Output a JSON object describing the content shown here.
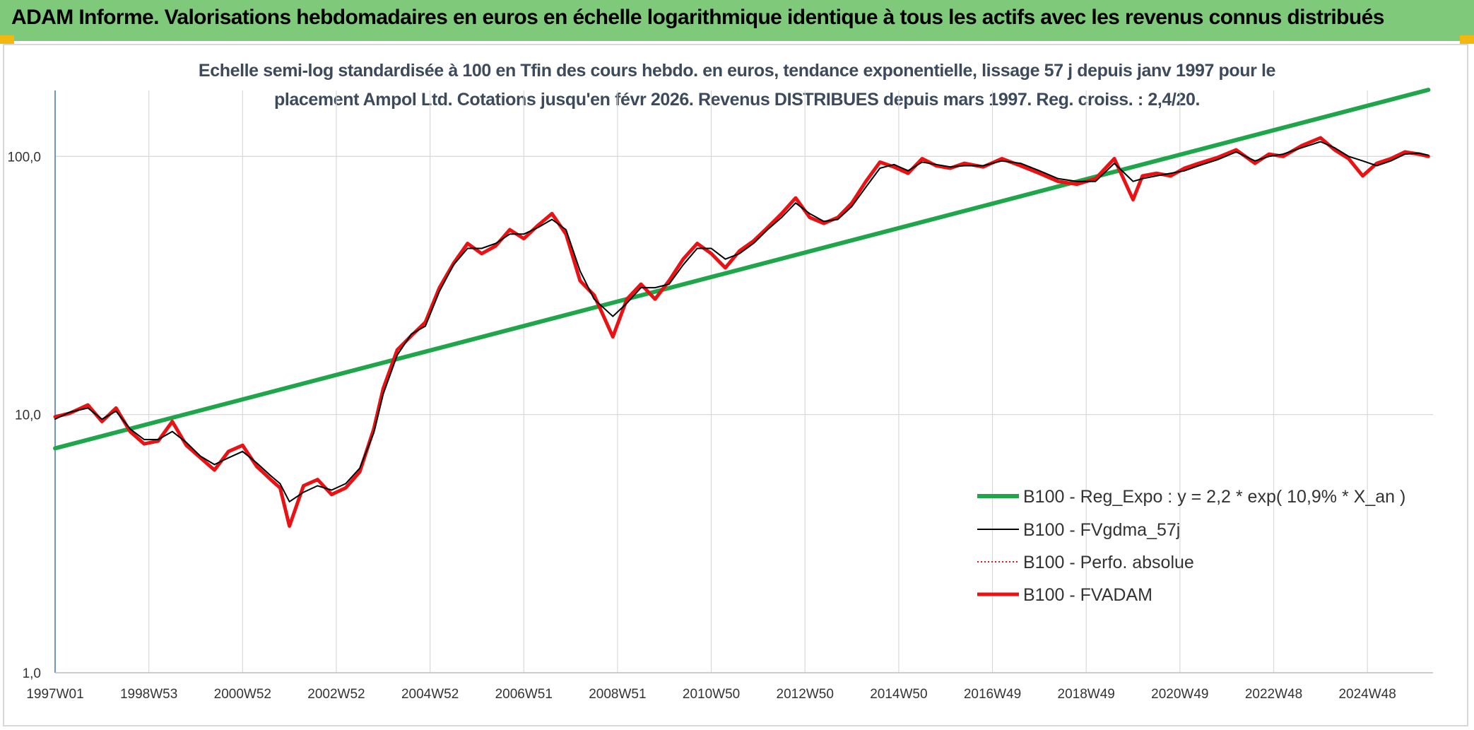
{
  "header": {
    "title": "ADAM Informe. Valorisations hebdomadaires en euros en échelle logarithmique identique à tous les actifs avec les revenus connus distribués"
  },
  "subtitle": {
    "line1": "Echelle semi-log standardisée à 100 en Tfin des cours hebdo. en euros, tendance exponentielle, lissage 57 j depuis janv 1997 pour le",
    "line2": "placement Ampol Ltd. Cotations jusqu'en févr 2026. Revenus DISTRIBUES depuis mars 1997. Reg. croiss. : 2,4/20."
  },
  "colors": {
    "header_bg": "#7fc97a",
    "reg_expo": "#1fa64a",
    "fvgdma": "#000000",
    "perfo": "#e0141e",
    "fvadam": "#ee1111",
    "grid": "#d9d9d9",
    "axis": "#4472c4"
  },
  "chart_data": {
    "type": "line",
    "y_scale": "log",
    "ylim": [
      1,
      180
    ],
    "xlim": [
      1997.0,
      2026.4
    ],
    "y_ticks": [
      {
        "value": 1,
        "label": "1,0"
      },
      {
        "value": 10,
        "label": "10,0"
      },
      {
        "value": 100,
        "label": "100,0"
      }
    ],
    "x_ticks": [
      {
        "value": 1997.0,
        "label": "1997W01"
      },
      {
        "value": 1999.0,
        "label": "1998W53"
      },
      {
        "value": 2001.0,
        "label": "2000W52"
      },
      {
        "value": 2003.0,
        "label": "2002W52"
      },
      {
        "value": 2005.0,
        "label": "2004W52"
      },
      {
        "value": 2007.0,
        "label": "2006W51"
      },
      {
        "value": 2009.0,
        "label": "2008W51"
      },
      {
        "value": 2011.0,
        "label": "2010W50"
      },
      {
        "value": 2013.0,
        "label": "2012W50"
      },
      {
        "value": 2015.0,
        "label": "2014W50"
      },
      {
        "value": 2017.0,
        "label": "2016W49"
      },
      {
        "value": 2019.0,
        "label": "2018W49"
      },
      {
        "value": 2021.0,
        "label": "2020W49"
      },
      {
        "value": 2023.0,
        "label": "2022W48"
      },
      {
        "value": 2025.0,
        "label": "2024W48"
      }
    ],
    "grid": true,
    "legend_position": "bottom-right",
    "series": [
      {
        "name": "B100 - Reg_Expo : y = 2,2 * exp( 10,9% *  X_an )",
        "key": "reg_expo",
        "style": "solid-thick",
        "x": [
          1997.0,
          2026.3
        ],
        "y": [
          7.4,
          181
        ]
      },
      {
        "name": "B100 - FVgdma_57j",
        "key": "fvgdma",
        "style": "solid-thin",
        "x": [
          1997.0,
          1997.3,
          1997.7,
          1998.0,
          1998.3,
          1998.6,
          1998.9,
          1999.2,
          1999.5,
          1999.8,
          2000.1,
          2000.4,
          2000.7,
          2001.0,
          2001.3,
          2001.6,
          2001.8,
          2002.0,
          2002.3,
          2002.6,
          2002.9,
          2003.2,
          2003.5,
          2003.8,
          2004.0,
          2004.3,
          2004.6,
          2004.9,
          2005.2,
          2005.5,
          2005.8,
          2006.1,
          2006.4,
          2006.7,
          2007.0,
          2007.3,
          2007.6,
          2007.9,
          2008.2,
          2008.5,
          2008.9,
          2009.2,
          2009.5,
          2009.8,
          2010.1,
          2010.4,
          2010.7,
          2011.0,
          2011.3,
          2011.6,
          2011.9,
          2012.2,
          2012.5,
          2012.8,
          2013.1,
          2013.4,
          2013.7,
          2014.0,
          2014.3,
          2014.6,
          2014.9,
          2015.2,
          2015.5,
          2015.8,
          2016.1,
          2016.4,
          2016.8,
          2017.2,
          2017.6,
          2018.0,
          2018.4,
          2018.8,
          2019.2,
          2019.6,
          2020.0,
          2020.2,
          2020.5,
          2020.8,
          2021.1,
          2021.4,
          2021.8,
          2022.2,
          2022.6,
          2022.9,
          2023.2,
          2023.6,
          2024.0,
          2024.3,
          2024.6,
          2024.9,
          2025.2,
          2025.5,
          2025.8,
          2026.1,
          2026.3
        ],
        "y": [
          9.6,
          10.2,
          10.6,
          9.6,
          10.3,
          8.8,
          8.0,
          8.0,
          8.6,
          7.8,
          6.9,
          6.4,
          6.8,
          7.2,
          6.5,
          5.8,
          5.4,
          4.6,
          5.0,
          5.3,
          5.1,
          5.4,
          6.2,
          8.5,
          12.0,
          17.0,
          20.5,
          22.0,
          30.0,
          38.0,
          44.0,
          44.0,
          46.0,
          50.0,
          50.0,
          53.0,
          57.0,
          52.0,
          36.0,
          28.0,
          24.0,
          27.0,
          31.0,
          31.0,
          32.0,
          38.0,
          44.0,
          44.0,
          40.0,
          42.0,
          46.0,
          52.0,
          58.0,
          66.0,
          60.0,
          56.0,
          57.0,
          64.0,
          76.0,
          90.0,
          93.0,
          88.0,
          95.0,
          93.0,
          91.0,
          92.0,
          92.0,
          96.0,
          94.0,
          88.0,
          82.0,
          80.0,
          80.0,
          94.0,
          80.0,
          82.0,
          84.0,
          86.0,
          88.0,
          92.0,
          97.0,
          104.0,
          96.0,
          100.0,
          102.0,
          108.0,
          114.0,
          108.0,
          100.0,
          96.0,
          92.0,
          96.0,
          102.0,
          103.0,
          101.0
        ]
      },
      {
        "name": "B100 - Perfo. absolue",
        "key": "perfo",
        "style": "dotted",
        "x": [
          1997.0,
          1997.3,
          1997.7,
          1998.0,
          1998.3,
          1998.6,
          1998.9,
          1999.2,
          1999.5,
          1999.8,
          2000.1,
          2000.4,
          2000.7,
          2001.0,
          2001.3,
          2001.6,
          2001.8,
          2002.0,
          2002.3,
          2002.6,
          2002.9,
          2003.2,
          2003.5,
          2003.8,
          2004.0,
          2004.3,
          2004.6,
          2004.9,
          2005.2,
          2005.5,
          2005.8,
          2006.1,
          2006.4,
          2006.7,
          2007.0,
          2007.3,
          2007.6,
          2007.9,
          2008.2,
          2008.5,
          2008.9,
          2009.2,
          2009.5,
          2009.8,
          2010.1,
          2010.4,
          2010.7,
          2011.0,
          2011.3,
          2011.6,
          2011.9,
          2012.2,
          2012.5,
          2012.8,
          2013.1,
          2013.4,
          2013.7,
          2014.0,
          2014.3,
          2014.6,
          2014.9,
          2015.2,
          2015.5,
          2015.8,
          2016.1,
          2016.4,
          2016.8,
          2017.2,
          2017.6,
          2018.0,
          2018.4,
          2018.8,
          2019.2,
          2019.6,
          2020.0,
          2020.2,
          2020.5,
          2020.8,
          2021.1,
          2021.4,
          2021.8,
          2022.2,
          2022.6,
          2022.9,
          2023.2,
          2023.6,
          2024.0,
          2024.3,
          2024.6,
          2024.9,
          2025.2,
          2025.5,
          2025.8,
          2026.1,
          2026.3
        ],
        "y": [
          9.8,
          10.1,
          10.9,
          9.4,
          10.6,
          8.6,
          7.7,
          7.9,
          9.4,
          7.6,
          6.8,
          6.1,
          7.2,
          7.6,
          6.3,
          5.6,
          5.2,
          3.7,
          5.3,
          5.6,
          4.9,
          5.2,
          6.0,
          8.8,
          12.6,
          17.8,
          20.2,
          22.8,
          31.0,
          38.5,
          46.0,
          42.0,
          45.0,
          52.0,
          48.0,
          54.0,
          60.0,
          50.0,
          33.0,
          29.0,
          20.0,
          28.0,
          32.0,
          28.0,
          33.0,
          40.0,
          46.0,
          42.0,
          37.0,
          43.0,
          47.0,
          53.0,
          60.0,
          69.0,
          58.0,
          55.0,
          58.0,
          66.0,
          80.0,
          95.0,
          91.0,
          86.0,
          98.0,
          92.0,
          90.0,
          94.0,
          91.0,
          98.0,
          92.0,
          86.0,
          80.0,
          78.0,
          82.0,
          98.0,
          68.0,
          84.0,
          86.0,
          84.0,
          90.0,
          94.0,
          99.0,
          106.0,
          94.0,
          102.0,
          100.0,
          110.0,
          118.0,
          106.0,
          98.0,
          84.0,
          94.0,
          98.0,
          104.0,
          102.0,
          100.0
        ]
      },
      {
        "name": "B100 - FVADAM",
        "key": "fvadam",
        "style": "solid-thick",
        "x": [
          1997.0,
          1997.3,
          1997.7,
          1998.0,
          1998.3,
          1998.6,
          1998.9,
          1999.2,
          1999.5,
          1999.8,
          2000.1,
          2000.4,
          2000.7,
          2001.0,
          2001.3,
          2001.6,
          2001.8,
          2002.0,
          2002.3,
          2002.6,
          2002.9,
          2003.2,
          2003.5,
          2003.8,
          2004.0,
          2004.3,
          2004.6,
          2004.9,
          2005.2,
          2005.5,
          2005.8,
          2006.1,
          2006.4,
          2006.7,
          2007.0,
          2007.3,
          2007.6,
          2007.9,
          2008.2,
          2008.5,
          2008.9,
          2009.2,
          2009.5,
          2009.8,
          2010.1,
          2010.4,
          2010.7,
          2011.0,
          2011.3,
          2011.6,
          2011.9,
          2012.2,
          2012.5,
          2012.8,
          2013.1,
          2013.4,
          2013.7,
          2014.0,
          2014.3,
          2014.6,
          2014.9,
          2015.2,
          2015.5,
          2015.8,
          2016.1,
          2016.4,
          2016.8,
          2017.2,
          2017.6,
          2018.0,
          2018.4,
          2018.8,
          2019.2,
          2019.6,
          2020.0,
          2020.2,
          2020.5,
          2020.8,
          2021.1,
          2021.4,
          2021.8,
          2022.2,
          2022.6,
          2022.9,
          2023.2,
          2023.6,
          2024.0,
          2024.3,
          2024.6,
          2024.9,
          2025.2,
          2025.5,
          2025.8,
          2026.1,
          2026.3
        ],
        "y": [
          9.8,
          10.1,
          10.9,
          9.4,
          10.6,
          8.6,
          7.7,
          7.9,
          9.4,
          7.6,
          6.8,
          6.1,
          7.2,
          7.6,
          6.3,
          5.6,
          5.2,
          3.7,
          5.3,
          5.6,
          4.9,
          5.2,
          6.0,
          8.8,
          12.6,
          17.8,
          20.2,
          22.8,
          31.0,
          38.5,
          46.0,
          42.0,
          45.0,
          52.0,
          48.0,
          54.0,
          60.0,
          50.0,
          33.0,
          29.0,
          20.0,
          28.0,
          32.0,
          28.0,
          33.0,
          40.0,
          46.0,
          42.0,
          37.0,
          43.0,
          47.0,
          53.0,
          60.0,
          69.0,
          58.0,
          55.0,
          58.0,
          66.0,
          80.0,
          95.0,
          91.0,
          86.0,
          98.0,
          92.0,
          90.0,
          94.0,
          91.0,
          98.0,
          92.0,
          86.0,
          80.0,
          78.0,
          82.0,
          98.0,
          68.0,
          84.0,
          86.0,
          84.0,
          90.0,
          94.0,
          99.0,
          106.0,
          94.0,
          102.0,
          100.0,
          110.0,
          118.0,
          106.0,
          98.0,
          84.0,
          94.0,
          98.0,
          104.0,
          102.0,
          100.0
        ]
      }
    ]
  }
}
